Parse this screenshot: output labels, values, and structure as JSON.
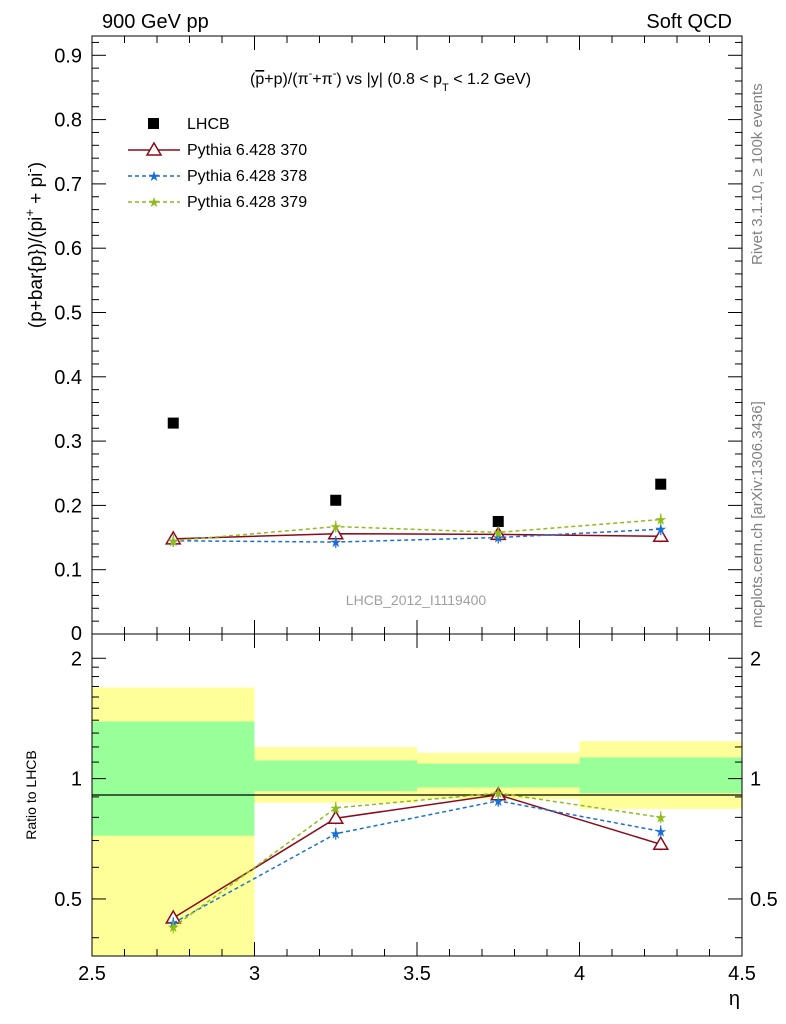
{
  "header": {
    "left": "900 GeV pp",
    "right": "Soft QCD"
  },
  "side_labels": {
    "rivet": "Rivet 3.1.10, ≥ 100k events",
    "mcplots": "mcplots.cern.ch [arXiv:1306.3436]"
  },
  "chart_data": [
    {
      "type": "scatter",
      "title_parts": {
        "pre": "(",
        "pbar": "p",
        "mid": "+p)/(π",
        "sup1": "-",
        "mid2": "+π",
        "sup2": "-",
        "mid3": ") vs |y| (0.8 < p",
        "sub": "T",
        "post": " < 1.2 GeV)"
      },
      "ylabel_parts": {
        "a": "(p+bar{p})/(pi",
        "sup1": "+",
        "b": " + pi",
        "sup2": "-",
        "c": ")"
      },
      "analysis_id": "LHCB_2012_I1119400",
      "ylim": [
        0,
        0.93
      ],
      "yticks": [
        0.1,
        0.2,
        0.3,
        0.4,
        0.5,
        0.6,
        0.7,
        0.8,
        0.9
      ],
      "ytick_labels": [
        "0.1",
        "0.2",
        "0.3",
        "0.4",
        "0.5",
        "0.6",
        "0.7",
        "0.8",
        "0.9"
      ],
      "bottom_tick_label": "0",
      "xlim": [
        2.5,
        4.5
      ],
      "x": [
        2.75,
        3.25,
        3.75,
        4.25
      ],
      "bin_edges": [
        2.5,
        3.0,
        3.5,
        4.0,
        4.5
      ],
      "series": [
        {
          "name": "LHCB",
          "style": "data",
          "color": "#000000",
          "values": [
            0.328,
            0.208,
            0.175,
            0.233
          ]
        },
        {
          "name": "Pythia 6.428 370",
          "style": "triangle",
          "color": "#8b0a1a",
          "dashed": false,
          "values": [
            0.148,
            0.156,
            0.155,
            0.152
          ]
        },
        {
          "name": "Pythia 6.428 378",
          "style": "star",
          "color": "#1a6fd6",
          "dashed": true,
          "values": [
            0.145,
            0.143,
            0.15,
            0.163
          ]
        },
        {
          "name": "Pythia 6.428 379",
          "style": "star",
          "color": "#8fbc1a",
          "dashed": true,
          "values": [
            0.145,
            0.167,
            0.158,
            0.178
          ]
        }
      ],
      "legend_position": "top-left"
    },
    {
      "type": "line",
      "ylabel": "Ratio to LHCB",
      "xlabel": "η",
      "ylim": [
        0.36,
        2.3
      ],
      "log_y": true,
      "yticks": [
        0.5,
        1,
        2
      ],
      "ytick_labels": [
        "0.5",
        "1",
        "2"
      ],
      "xticks": [
        2.5,
        3,
        3.5,
        4,
        4.5
      ],
      "xtick_labels": [
        "2.5",
        "3",
        "3.5",
        "4",
        "4.5"
      ],
      "x": [
        2.75,
        3.25,
        3.75,
        4.25
      ],
      "bands": {
        "bin_edges": [
          2.5,
          3.0,
          3.5,
          4.0,
          4.5
        ],
        "yellow": [
          [
            0.36,
            1.69
          ],
          [
            0.87,
            1.2
          ],
          [
            0.89,
            1.16
          ],
          [
            0.84,
            1.24
          ]
        ],
        "green": [
          [
            0.72,
            1.39
          ],
          [
            0.93,
            1.11
          ],
          [
            0.95,
            1.09
          ],
          [
            0.92,
            1.13
          ]
        ],
        "yellow_color": "#ffff99",
        "green_color": "#99ff99"
      },
      "series": [
        {
          "name": "Pythia 6.428 370",
          "color": "#8b0a1a",
          "values": [
            0.448,
            0.796,
            0.911,
            0.685
          ]
        },
        {
          "name": "Pythia 6.428 378",
          "color": "#1a6fd6",
          "values": [
            0.435,
            0.728,
            0.88,
            0.738
          ]
        },
        {
          "name": "Pythia 6.428 379",
          "color": "#8fbc1a",
          "values": [
            0.425,
            0.845,
            0.92,
            0.8
          ]
        }
      ]
    }
  ]
}
